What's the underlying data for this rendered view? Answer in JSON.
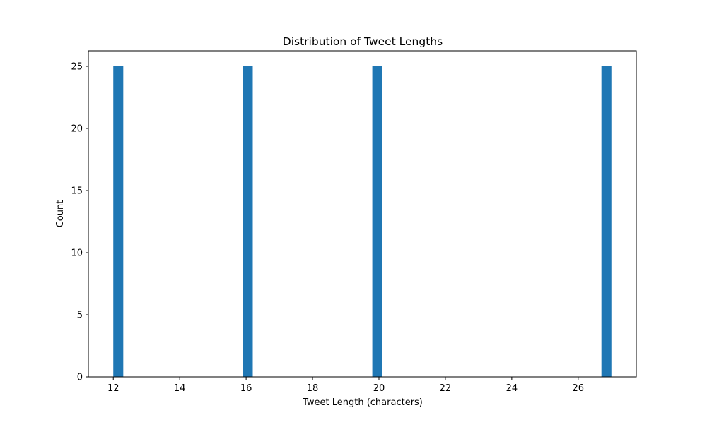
{
  "chart_data": {
    "type": "bar",
    "title": "Distribution of Tweet Lengths",
    "xlabel": "Tweet Length (characters)",
    "ylabel": "Count",
    "xlim": [
      11.25,
      27.75
    ],
    "ylim": [
      0,
      26.25
    ],
    "xticks": [
      12,
      14,
      16,
      18,
      20,
      22,
      24,
      26
    ],
    "yticks": [
      0,
      5,
      10,
      15,
      20,
      25
    ],
    "bin_width": 0.3,
    "bins": [
      {
        "x": 12.15,
        "count": 25
      },
      {
        "x": 16.05,
        "count": 25
      },
      {
        "x": 19.95,
        "count": 25
      },
      {
        "x": 26.85,
        "count": 25
      }
    ],
    "bar_color": "#1f77b4",
    "grid": false,
    "legend": "none"
  }
}
